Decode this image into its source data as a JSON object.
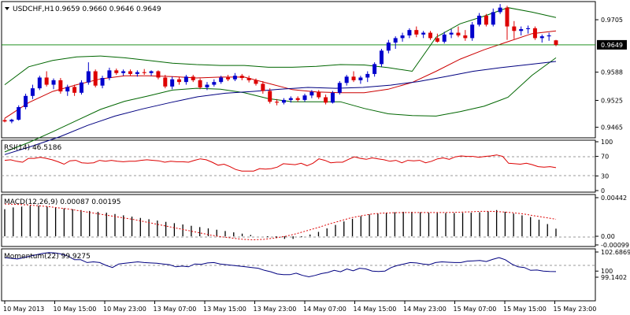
{
  "chart_data": [
    {
      "type": "candlestick",
      "panel": "main",
      "symbol_label": "USDCHF,H1",
      "ohlc_label": "0.9659 0.9660 0.9646 0.9649",
      "current_price_label": "0.9649",
      "current_price": 0.9649,
      "ylim": [
        0.9445,
        0.9742
      ],
      "yticks": [
        {
          "value": 0.9705,
          "label": "0.9705"
        },
        {
          "value": 0.9588,
          "label": "0.9588"
        },
        {
          "value": 0.9525,
          "label": "0.9525"
        },
        {
          "value": 0.9465,
          "label": "0.9465"
        }
      ],
      "colors": {
        "up": "#0000cc",
        "down": "#dd0000",
        "bollinger": "#006600",
        "ma_fast": "#cc0000",
        "ma_slow": "#000080",
        "price_line": "#008000"
      },
      "candles": [
        [
          0.9481,
          0.9485,
          0.9476,
          0.9478
        ],
        [
          0.9478,
          0.9484,
          0.9474,
          0.9482
        ],
        [
          0.9482,
          0.9514,
          0.948,
          0.951
        ],
        [
          0.951,
          0.954,
          0.9505,
          0.9535
        ],
        [
          0.9535,
          0.956,
          0.9528,
          0.9552
        ],
        [
          0.9552,
          0.958,
          0.9548,
          0.9576
        ],
        [
          0.9576,
          0.959,
          0.9556,
          0.956
        ],
        [
          0.956,
          0.9574,
          0.955,
          0.957
        ],
        [
          0.957,
          0.9575,
          0.954,
          0.9545
        ],
        [
          0.9545,
          0.956,
          0.9535,
          0.9555
        ],
        [
          0.9555,
          0.956,
          0.9535,
          0.9542
        ],
        [
          0.9542,
          0.957,
          0.9538,
          0.9565
        ],
        [
          0.9565,
          0.961,
          0.956,
          0.959
        ],
        [
          0.959,
          0.9594,
          0.9554,
          0.9558
        ],
        [
          0.9558,
          0.958,
          0.9552,
          0.9575
        ],
        [
          0.9575,
          0.9598,
          0.957,
          0.9592
        ],
        [
          0.9592,
          0.9596,
          0.9582,
          0.9586
        ],
        [
          0.9586,
          0.9594,
          0.958,
          0.959
        ],
        [
          0.959,
          0.9594,
          0.958,
          0.9584
        ],
        [
          0.9584,
          0.9592,
          0.9578,
          0.9588
        ],
        [
          0.9588,
          0.9595,
          0.9582,
          0.9586
        ],
        [
          0.9586,
          0.9592,
          0.958,
          0.959
        ],
        [
          0.959,
          0.9592,
          0.9572,
          0.9576
        ],
        [
          0.9576,
          0.9582,
          0.9552,
          0.9556
        ],
        [
          0.9556,
          0.9578,
          0.955,
          0.9572
        ],
        [
          0.9572,
          0.9578,
          0.956,
          0.9566
        ],
        [
          0.9566,
          0.9582,
          0.956,
          0.9578
        ],
        [
          0.9578,
          0.9582,
          0.9566,
          0.957
        ],
        [
          0.957,
          0.9574,
          0.955,
          0.9554
        ],
        [
          0.9554,
          0.9566,
          0.9548,
          0.956
        ],
        [
          0.956,
          0.9572,
          0.9556,
          0.9566
        ],
        [
          0.9566,
          0.958,
          0.9562,
          0.9576
        ],
        [
          0.9576,
          0.9582,
          0.9568,
          0.9572
        ],
        [
          0.9572,
          0.9586,
          0.9568,
          0.958
        ],
        [
          0.958,
          0.9584,
          0.957,
          0.9575
        ],
        [
          0.9575,
          0.958,
          0.9565,
          0.957
        ],
        [
          0.957,
          0.9574,
          0.9558,
          0.9562
        ],
        [
          0.9562,
          0.9568,
          0.954,
          0.9546
        ],
        [
          0.9546,
          0.9552,
          0.9518,
          0.9522
        ],
        [
          0.9522,
          0.9528,
          0.9514,
          0.952
        ],
        [
          0.952,
          0.953,
          0.9516,
          0.9526
        ],
        [
          0.9526,
          0.9534,
          0.952,
          0.953
        ],
        [
          0.953,
          0.9534,
          0.9522,
          0.9526
        ],
        [
          0.9526,
          0.954,
          0.9522,
          0.9536
        ],
        [
          0.9536,
          0.9548,
          0.953,
          0.9544
        ],
        [
          0.9544,
          0.9548,
          0.9528,
          0.9532
        ],
        [
          0.9532,
          0.9538,
          0.9516,
          0.952
        ],
        [
          0.952,
          0.9546,
          0.9518,
          0.9542
        ],
        [
          0.9542,
          0.9568,
          0.9538,
          0.9564
        ],
        [
          0.9564,
          0.9582,
          0.9558,
          0.9578
        ],
        [
          0.9578,
          0.959,
          0.9566,
          0.957
        ],
        [
          0.957,
          0.958,
          0.9562,
          0.9576
        ],
        [
          0.9576,
          0.959,
          0.9566,
          0.9584
        ],
        [
          0.9584,
          0.961,
          0.9578,
          0.9606
        ],
        [
          0.9606,
          0.964,
          0.96,
          0.9636
        ],
        [
          0.9636,
          0.966,
          0.963,
          0.9654
        ],
        [
          0.9654,
          0.9668,
          0.964,
          0.9664
        ],
        [
          0.9664,
          0.9676,
          0.9656,
          0.967
        ],
        [
          0.967,
          0.9686,
          0.9664,
          0.9682
        ],
        [
          0.9682,
          0.969,
          0.9666,
          0.9672
        ],
        [
          0.9672,
          0.968,
          0.9664,
          0.9676
        ],
        [
          0.9676,
          0.968,
          0.966,
          0.9664
        ],
        [
          0.9664,
          0.9674,
          0.9654,
          0.9656
        ],
        [
          0.9656,
          0.9678,
          0.9652,
          0.9672
        ],
        [
          0.9672,
          0.9684,
          0.9664,
          0.9676
        ],
        [
          0.9676,
          0.969,
          0.9666,
          0.967
        ],
        [
          0.967,
          0.9682,
          0.9658,
          0.9664
        ],
        [
          0.9664,
          0.97,
          0.9658,
          0.9694
        ],
        [
          0.9694,
          0.972,
          0.969,
          0.9714
        ],
        [
          0.9714,
          0.9718,
          0.969,
          0.9694
        ],
        [
          0.9694,
          0.973,
          0.969,
          0.9722
        ],
        [
          0.9722,
          0.974,
          0.9718,
          0.9732
        ],
        [
          0.9732,
          0.9736,
          0.966,
          0.969
        ],
        [
          0.969,
          0.9702,
          0.9662,
          0.968
        ],
        [
          0.968,
          0.969,
          0.967,
          0.9684
        ],
        [
          0.9684,
          0.9692,
          0.9674,
          0.9686
        ],
        [
          0.9686,
          0.969,
          0.966,
          0.9664
        ],
        [
          0.9664,
          0.9672,
          0.9654,
          0.9668
        ],
        [
          0.9668,
          0.9676,
          0.9658,
          0.967
        ],
        [
          0.9659,
          0.966,
          0.9646,
          0.9649
        ]
      ],
      "bb_upper": [
        0.956,
        0.96,
        0.9614,
        0.9622,
        0.9624,
        0.962,
        0.9614,
        0.9608,
        0.9605,
        0.9603,
        0.9603,
        0.9599,
        0.9599,
        0.9601,
        0.9605,
        0.9604,
        0.9598,
        0.959,
        0.9666,
        0.9696,
        0.9713,
        0.9732,
        0.9722,
        0.971
      ],
      "bb_lower": [
        0.941,
        0.9431,
        0.9455,
        0.948,
        0.9505,
        0.9523,
        0.9535,
        0.9548,
        0.9552,
        0.955,
        0.9542,
        0.9529,
        0.9522,
        0.9522,
        0.9522,
        0.9507,
        0.9495,
        0.9491,
        0.949,
        0.95,
        0.9512,
        0.9532,
        0.9581,
        0.962
      ],
      "ma_fast": [
        0.9485,
        0.952,
        0.9545,
        0.956,
        0.9573,
        0.958,
        0.958,
        0.9578,
        0.9575,
        0.9577,
        0.9577,
        0.9563,
        0.9549,
        0.9544,
        0.9542,
        0.9542,
        0.955,
        0.9565,
        0.959,
        0.9617,
        0.9638,
        0.9656,
        0.9674,
        0.968
      ],
      "ma_slow": [
        0.9404,
        0.9423,
        0.9444,
        0.9469,
        0.949,
        0.9506,
        0.952,
        0.9533,
        0.9541,
        0.9545,
        0.955,
        0.9554,
        0.9552,
        0.9554,
        0.9559,
        0.9567,
        0.9578,
        0.959,
        0.9598,
        0.9605,
        0.9612
      ]
    },
    {
      "type": "line",
      "panel": "rsi",
      "label": "RSI(14) 46.5186",
      "ylim": [
        0,
        100
      ],
      "yticks": [
        {
          "value": 100,
          "label": "100"
        },
        {
          "value": 70,
          "label": "70"
        },
        {
          "value": 30,
          "label": "30"
        },
        {
          "value": 0,
          "label": "0"
        }
      ],
      "color": "#dd0000",
      "values": [
        62,
        63,
        60,
        58,
        66,
        66,
        68,
        66,
        63,
        59,
        54,
        61,
        62,
        57,
        56,
        57,
        62,
        60,
        62,
        60,
        59,
        60,
        60,
        62,
        63,
        62,
        61,
        58,
        60,
        59,
        59,
        58,
        62,
        65,
        63,
        58,
        52,
        54,
        49,
        43,
        40,
        40,
        40,
        45,
        44,
        45,
        48,
        55,
        54,
        53,
        56,
        51,
        56,
        65,
        62,
        57,
        58,
        58,
        64,
        69,
        66,
        64,
        67,
        65,
        63,
        60,
        62,
        57,
        62,
        61,
        62,
        57,
        60,
        65,
        67,
        64,
        69,
        71,
        70,
        70,
        68,
        70,
        71,
        73,
        70,
        56,
        55,
        54,
        56,
        53,
        49,
        48,
        49,
        47
      ]
    },
    {
      "type": "bar+line",
      "panel": "macd",
      "label": "MACD(12,26,9) 0.00087 0.00195",
      "ylim": [
        -0.00099,
        0.00442
      ],
      "yticks": [
        {
          "value": 0.00442,
          "label": "0.00442"
        },
        {
          "value": 0.0,
          "label": "0.00"
        },
        {
          "value": -0.00099,
          "label": "-0.00099"
        }
      ],
      "colors": {
        "histogram": "#000000",
        "signal": "#dd0000"
      },
      "histogram": [
        0.0031,
        0.0033,
        0.0034,
        0.0035,
        0.0035,
        0.0034,
        0.0033,
        0.0032,
        0.0031,
        0.003,
        0.0029,
        0.0028,
        0.0027,
        0.00255,
        0.0024,
        0.00225,
        0.0021,
        0.00195,
        0.0018,
        0.00165,
        0.0015,
        0.00135,
        0.0012,
        0.00105,
        0.0009,
        0.00075,
        0.0006,
        0.00045,
        0.0003,
        0.00015,
        0.0,
        -0.0001,
        -0.0002,
        -0.0003,
        -0.0003,
        -0.0001,
        0.0002,
        0.0005,
        0.0009,
        0.0013,
        0.0017,
        0.002,
        0.0023,
        0.0025,
        0.0026,
        0.0027,
        0.00275,
        0.0028,
        0.0028,
        0.00275,
        0.0027,
        0.00268,
        0.00266,
        0.00266,
        0.00268,
        0.0027,
        0.00275,
        0.00285,
        0.003,
        0.0028,
        0.0026,
        0.0024,
        0.0022,
        0.0019,
        0.0014,
        0.00087
      ],
      "signal": [
        0.0037,
        0.00365,
        0.0036,
        0.0035,
        0.0034,
        0.00325,
        0.0031,
        0.0029,
        0.0027,
        0.0025,
        0.0023,
        0.0021,
        0.0019,
        0.00165,
        0.0014,
        0.00115,
        0.0009,
        0.00065,
        0.0004,
        0.00015,
        -5e-05,
        -0.0002,
        -0.00035,
        -0.0004,
        -0.00035,
        -0.0002,
        0.0,
        0.0003,
        0.00065,
        0.001,
        0.0014,
        0.00175,
        0.0021,
        0.00235,
        0.00255,
        0.00265,
        0.0027,
        0.00272,
        0.00272,
        0.00272,
        0.00272,
        0.00272,
        0.00275,
        0.0028,
        0.00285,
        0.00285,
        0.0028,
        0.0027,
        0.00255,
        0.00235,
        0.00215,
        0.00195
      ]
    },
    {
      "type": "line",
      "panel": "momentum",
      "label": "Momentum(22) 99.9275",
      "ylim": [
        99.1402,
        102.6869
      ],
      "yticks": [
        {
          "value": 102.6869,
          "label": "102.6869"
        },
        {
          "value": 100,
          "label": "100"
        },
        {
          "value": 99.1402,
          "label": "99.1402"
        }
      ],
      "color": "#000080",
      "values": [
        101.9,
        101.8,
        101.7,
        101.9,
        102.1,
        102.3,
        102.5,
        102.6,
        102.55,
        102.4,
        102.1,
        101.6,
        101.6,
        101.2,
        101.3,
        101.2,
        100.8,
        100.5,
        101.0,
        101.1,
        101.2,
        101.3,
        101.2,
        101.15,
        101.1,
        101.0,
        100.9,
        100.6,
        100.7,
        100.6,
        101.0,
        100.95,
        101.15,
        101.2,
        101.0,
        100.9,
        100.8,
        100.7,
        100.6,
        100.5,
        100.4,
        100.1,
        99.9,
        99.6,
        99.5,
        99.5,
        99.7,
        99.4,
        99.2,
        99.4,
        99.65,
        99.8,
        100.1,
        99.9,
        100.3,
        100.05,
        100.4,
        100.3,
        100.0,
        99.95,
        100.0,
        100.5,
        100.8,
        101.0,
        101.2,
        101.15,
        101.0,
        100.9,
        101.2,
        101.3,
        101.25,
        101.2,
        101.2,
        101.4,
        101.45,
        101.5,
        101.35,
        101.65,
        101.9,
        101.6,
        101.0,
        100.6,
        100.5,
        100.1,
        100.15,
        100.0,
        99.95,
        99.93
      ]
    }
  ],
  "x_axis": {
    "labels": [
      "10 May 2013",
      "10 May 15:00",
      "10 May 23:00",
      "13 May 07:00",
      "13 May 15:00",
      "13 May 23:00",
      "14 May 07:00",
      "14 May 15:00",
      "14 May 23:00",
      "15 May 07:00",
      "15 May 15:00",
      "15 May 23:00"
    ]
  }
}
